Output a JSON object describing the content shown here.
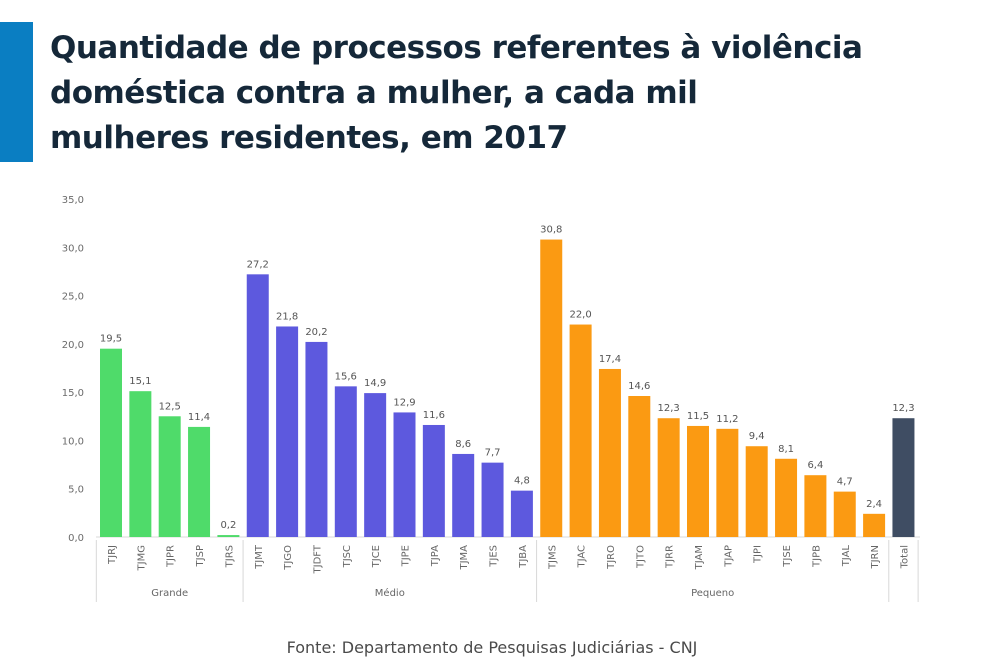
{
  "title_lines": [
    "Quantidade de processos referentes à violência",
    "doméstica contra a mulher, a cada mil",
    "mulheres residentes, em 2017"
  ],
  "source": "Fonte: Departamento de Pesquisas Judiciárias - CNJ",
  "colors": {
    "accent": "#0a7ec2",
    "title": "#152839",
    "Grande": "#4fdb6a",
    "Médio": "#5d59de",
    "Pequeno": "#fb9a12",
    "Total": "#3f4d63"
  },
  "chart_data": {
    "type": "bar",
    "ylim": [
      0,
      35
    ],
    "yticks": [
      "0,0",
      "5,0",
      "10,0",
      "15,0",
      "20,0",
      "25,0",
      "30,0",
      "35,0"
    ],
    "grid": false,
    "legend": "none",
    "groups": [
      {
        "name": "Grande",
        "categories": [
          "TJRJ",
          "TJMG",
          "TJPR",
          "TJSP",
          "TJRS"
        ],
        "values": [
          19.5,
          15.1,
          12.5,
          11.4,
          0.2
        ],
        "labels": [
          "19,5",
          "15,1",
          "12,5",
          "11,4",
          "0,2"
        ]
      },
      {
        "name": "Médio",
        "categories": [
          "TJMT",
          "TJGO",
          "TJDFT",
          "TJSC",
          "TJCE",
          "TJPE",
          "TJPA",
          "TJMA",
          "TJES",
          "TJBA"
        ],
        "values": [
          27.2,
          21.8,
          20.2,
          15.6,
          14.9,
          12.9,
          11.6,
          8.6,
          7.7,
          4.8
        ],
        "labels": [
          "27,2",
          "21,8",
          "20,2",
          "15,6",
          "14,9",
          "12,9",
          "11,6",
          "8,6",
          "7,7",
          "4,8"
        ]
      },
      {
        "name": "Pequeno",
        "categories": [
          "TJMS",
          "TJAC",
          "TJRO",
          "TJTO",
          "TJRR",
          "TJAM",
          "TJAP",
          "TJPI",
          "TJSE",
          "TJPB",
          "TJAL",
          "TJRN"
        ],
        "values": [
          30.8,
          22.0,
          17.4,
          14.6,
          12.3,
          11.5,
          11.2,
          9.4,
          8.1,
          6.4,
          4.7,
          2.4
        ],
        "labels": [
          "30,8",
          "22,0",
          "17,4",
          "14,6",
          "12,3",
          "11,5",
          "11,2",
          "9,4",
          "8,1",
          "6,4",
          "4,7",
          "2,4"
        ]
      },
      {
        "name": "",
        "categories": [
          "Total"
        ],
        "values": [
          12.3
        ],
        "labels": [
          "12,3"
        ]
      }
    ]
  }
}
